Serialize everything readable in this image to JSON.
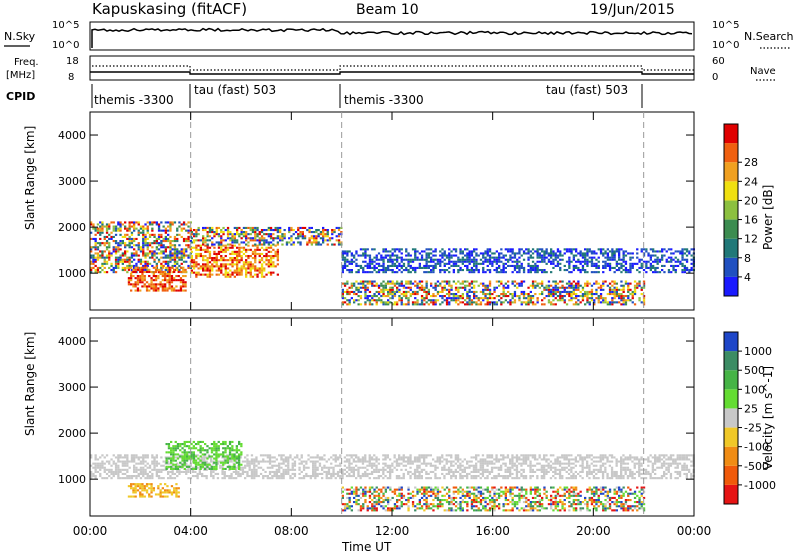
{
  "header": {
    "station": "Kapuskasing (fitACF)",
    "beam": "Beam 10",
    "date": "19/Jun/2015"
  },
  "summary_panel": {
    "nsky_label": "N.Sky",
    "nsky_ticks": [
      "10^5",
      "10^0"
    ],
    "nsearch_label": "N.Search",
    "nsearch_ticks": [
      "10^5",
      "10^0"
    ],
    "freq_label": "Freq.",
    "freq_unit": "[MHz]",
    "freq_ticks": [
      "18",
      "8"
    ],
    "nave_label": "Nave",
    "nave_ticks": [
      "60",
      "0"
    ],
    "cpid_label": "CPID"
  },
  "cpid_segments": [
    {
      "label": "themis -3300",
      "start_hour": 0
    },
    {
      "label": "tau (fast) 503",
      "start_hour": 4
    },
    {
      "label": "themis -3300",
      "start_hour": 10
    },
    {
      "label": "tau (fast) 503",
      "start_hour": 22
    }
  ],
  "chart_data": [
    {
      "type": "heatmap",
      "title": "",
      "parameter": "Power",
      "xlabel": "",
      "ylabel": "Slant Range [km]",
      "x_range_hours": [
        0,
        24
      ],
      "y_range_km": [
        200,
        4500
      ],
      "x_ticks": [
        "00:00",
        "04:00",
        "08:00",
        "12:00",
        "16:00",
        "20:00",
        "00:00"
      ],
      "y_ticks": [
        1000,
        2000,
        3000,
        4000
      ],
      "colorbar": {
        "label": "Power [dB]",
        "ticks": [
          "4",
          "8",
          "12",
          "16",
          "20",
          "24",
          "28"
        ],
        "colors": [
          "#1a1aff",
          "#2050c0",
          "#207878",
          "#3c8c50",
          "#8cc040",
          "#f0e010",
          "#f0a020",
          "#f06010",
          "#e00000"
        ]
      },
      "echo_regions": [
        {
          "t_start": 0.0,
          "t_end": 4.0,
          "r_min": 1000,
          "r_max": 2100,
          "level": "mixed 8-20 dB"
        },
        {
          "t_start": 1.5,
          "t_end": 3.8,
          "r_min": 600,
          "r_max": 1100,
          "level": "24-28 dB"
        },
        {
          "t_start": 4.0,
          "t_end": 7.5,
          "r_min": 900,
          "r_max": 1600,
          "level": "20-28 dB"
        },
        {
          "t_start": 4.0,
          "t_end": 10.0,
          "r_min": 1600,
          "r_max": 2000,
          "level": "12-20 dB"
        },
        {
          "t_start": 10.0,
          "t_end": 24.0,
          "r_min": 1000,
          "r_max": 1500,
          "level": "4-12 dB"
        },
        {
          "t_start": 10.0,
          "t_end": 22.0,
          "r_min": 300,
          "r_max": 800,
          "level": "8-16 dB"
        }
      ]
    },
    {
      "type": "heatmap",
      "title": "",
      "parameter": "Velocity",
      "xlabel": "Time UT",
      "ylabel": "Slant Range [km]",
      "x_range_hours": [
        0,
        24
      ],
      "y_range_km": [
        200,
        4500
      ],
      "x_ticks": [
        "00:00",
        "04:00",
        "08:00",
        "12:00",
        "16:00",
        "20:00",
        "00:00"
      ],
      "y_ticks": [
        1000,
        2000,
        3000,
        4000
      ],
      "colorbar": {
        "label": "Velocity [m s^-1]",
        "ticks": [
          "1000",
          "500",
          "100",
          "25",
          "-25",
          "-100",
          "-500",
          "-1000"
        ],
        "colors": [
          "#1e46c8",
          "#3c8c64",
          "#46b446",
          "#64dc32",
          "#c8c8c8",
          "#f0c828",
          "#f08c14",
          "#f05a0a",
          "#e61414"
        ]
      },
      "echo_regions": [
        {
          "t_start": 0.0,
          "t_end": 24.0,
          "r_min": 1000,
          "r_max": 1500,
          "level": "ground scatter (grey)"
        },
        {
          "t_start": 3.0,
          "t_end": 6.0,
          "r_min": 1200,
          "r_max": 1800,
          "level": "100-500 m/s"
        },
        {
          "t_start": 1.5,
          "t_end": 3.5,
          "r_min": 600,
          "r_max": 900,
          "level": "-100 to -500 m/s"
        },
        {
          "t_start": 10.0,
          "t_end": 22.0,
          "r_min": 300,
          "r_max": 800,
          "level": "mixed"
        }
      ]
    }
  ]
}
